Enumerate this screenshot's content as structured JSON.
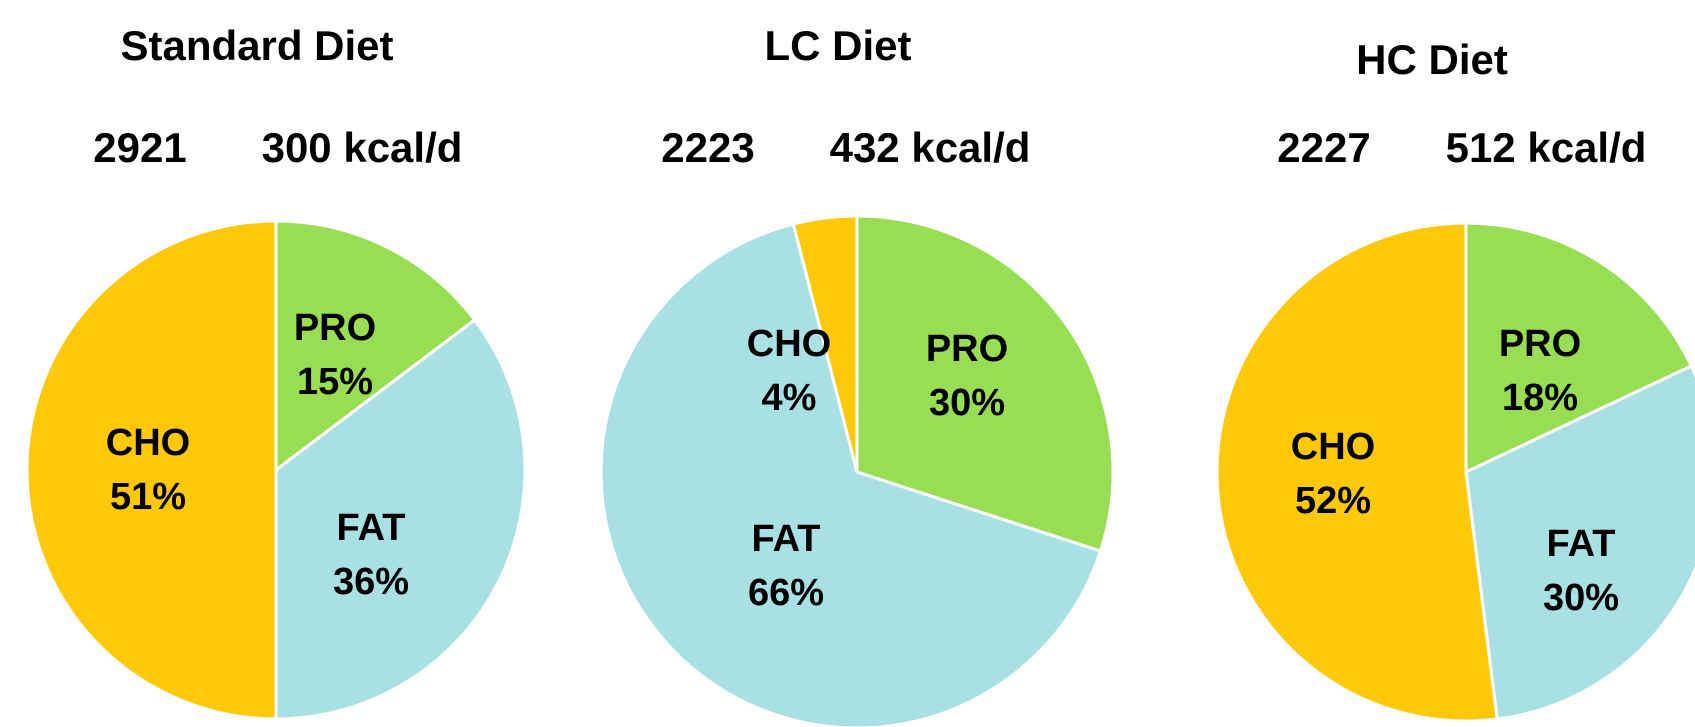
{
  "chart_data": [
    {
      "type": "pie",
      "title": "Standard Diet",
      "annotations": [
        "2921",
        "300 kcal/d"
      ],
      "categories": [
        "PRO",
        "FAT",
        "CHO"
      ],
      "values": [
        15,
        36,
        51
      ],
      "value_labels": [
        "15%",
        "36%",
        "51%"
      ],
      "colors": [
        "#99dd55",
        "#a8e0e4",
        "#ffc90a"
      ]
    },
    {
      "type": "pie",
      "title": "LC Diet",
      "annotations": [
        "2223",
        "432 kcal/d"
      ],
      "categories": [
        "PRO",
        "FAT",
        "CHO"
      ],
      "values": [
        30,
        66,
        4
      ],
      "value_labels": [
        "30%",
        "66%",
        "4%"
      ],
      "colors": [
        "#99dd55",
        "#a8e0e4",
        "#ffc90a"
      ]
    },
    {
      "type": "pie",
      "title": "HC Diet",
      "annotations": [
        "2227",
        "512 kcal/d"
      ],
      "categories": [
        "PRO",
        "FAT",
        "CHO"
      ],
      "values": [
        18,
        30,
        52
      ],
      "value_labels": [
        "18%",
        "30%",
        "52%"
      ],
      "colors": [
        "#99dd55",
        "#a8e0e4",
        "#ffc90a"
      ]
    }
  ]
}
